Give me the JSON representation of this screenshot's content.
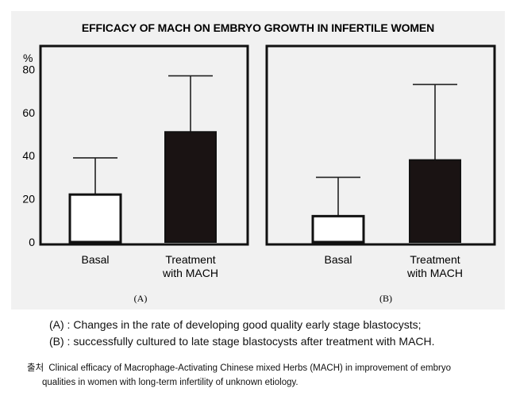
{
  "chart_data": {
    "type": "bar",
    "title": "EFFICACY OF MACH ON EMBRYO GROWTH IN INFERTILE WOMEN",
    "ylabel": "%",
    "ylim": [
      0,
      90
    ],
    "yticks": [
      0,
      20,
      40,
      60,
      80
    ],
    "categories": [
      "Basal",
      "Treatment\nwith MACH"
    ],
    "category_lines": [
      [
        "Basal"
      ],
      [
        "Treatment",
        "with MACH"
      ]
    ],
    "panels": [
      {
        "label": "(A)",
        "values": [
          22,
          51
        ],
        "error_upper": [
          39,
          77
        ],
        "fills": [
          "#ffffff",
          "#1a1313"
        ]
      },
      {
        "label": "(B)",
        "values": [
          12,
          38
        ],
        "error_upper": [
          30,
          73
        ],
        "fills": [
          "#ffffff",
          "#1a1313"
        ]
      }
    ]
  },
  "caption": {
    "line_a": "(A) : Changes in the rate of developing good quality early stage blastocysts;",
    "line_b": "(B) : successfully cultured to late stage blastocysts after treatment with MACH."
  },
  "source": {
    "prefix": "출처",
    "line1": "Clinical efficacy of Macrophage-Activating Chinese mixed Herbs (MACH) in improvement of embryo",
    "line2": "qualities in women with long-term infertility of unknown etiology."
  },
  "colors": {
    "panel_bg": "#f1f1f1",
    "bar_basal": "#ffffff",
    "bar_treatment": "#1a1313"
  }
}
